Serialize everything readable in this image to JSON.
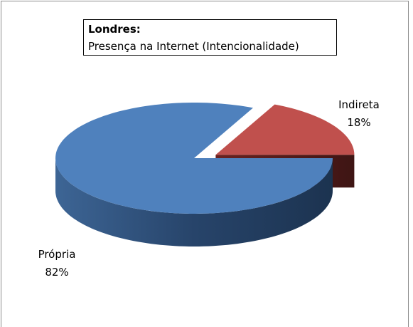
{
  "chart_data": {
    "type": "pie3d",
    "title": "Londres:",
    "subtitle": "Presença na Internet (Intencionalidade)",
    "categories": [
      "Própria",
      "Indireta"
    ],
    "values": [
      82,
      18
    ],
    "value_labels": [
      "82%",
      "18%"
    ],
    "colors": [
      "#4f81bd",
      "#c0504d"
    ],
    "exploded": [
      false,
      true
    ]
  }
}
